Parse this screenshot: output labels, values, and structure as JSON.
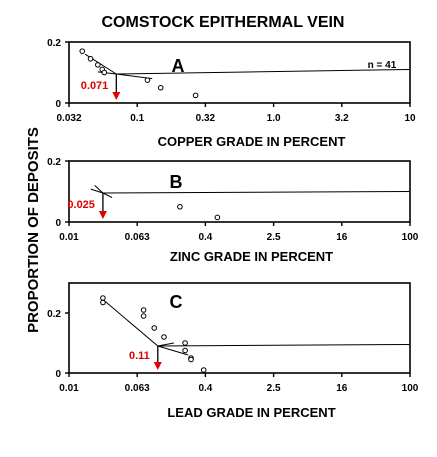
{
  "title": "COMSTOCK EPITHERMAL VEIN",
  "ylabel": "PROPORTION OF DEPOSITS",
  "colors": {
    "ink": "#000000",
    "callout": "#e00000",
    "background": "#ffffff"
  },
  "chart_data": [
    {
      "type": "scatter",
      "panel": "A",
      "xscale": "log",
      "xlim": [
        0.032,
        10
      ],
      "ylim": [
        0,
        0.2
      ],
      "xticks": [
        "0.032",
        "0.1",
        "0.32",
        "1.0",
        "3.2",
        "10"
      ],
      "yticks": [
        "0",
        "0.2"
      ],
      "xlabel": "COPPER GRADE IN PERCENT",
      "annotation": "n = 41",
      "grid": false,
      "points": [
        {
          "x": 0.04,
          "y": 0.17
        },
        {
          "x": 0.046,
          "y": 0.145
        },
        {
          "x": 0.052,
          "y": 0.125
        },
        {
          "x": 0.056,
          "y": 0.11
        },
        {
          "x": 0.058,
          "y": 0.1
        },
        {
          "x": 0.12,
          "y": 0.075
        },
        {
          "x": 0.15,
          "y": 0.05
        },
        {
          "x": 0.27,
          "y": 0.025
        }
      ],
      "curve_low": [
        {
          "x": 0.042,
          "y": 0.16
        },
        {
          "x": 0.071,
          "y": 0.095
        }
      ],
      "curve_high": [
        {
          "x": 0.052,
          "y": 0.102
        },
        {
          "x": 0.071,
          "y": 0.095
        },
        {
          "x": 0.13,
          "y": 0.08
        }
      ],
      "fit_line": [
        {
          "x": 0.071,
          "y": 0.095
        },
        {
          "x": 10,
          "y": 0.11
        }
      ],
      "callout_value": 0.071,
      "callout_label": "0.071"
    },
    {
      "type": "scatter",
      "panel": "B",
      "xscale": "log",
      "xlim": [
        0.01,
        100
      ],
      "ylim": [
        0,
        0.2
      ],
      "xticks": [
        "0.01",
        "0.063",
        "0.4",
        "2.5",
        "16",
        "100"
      ],
      "yticks": [
        "0",
        "0.2"
      ],
      "xlabel": "ZINC GRADE IN PERCENT",
      "grid": false,
      "points": [
        {
          "x": 0.2,
          "y": 0.05
        },
        {
          "x": 0.55,
          "y": 0.015
        }
      ],
      "curve_low": [
        {
          "x": 0.02,
          "y": 0.12
        },
        {
          "x": 0.025,
          "y": 0.095
        }
      ],
      "curve_high": [
        {
          "x": 0.018,
          "y": 0.108
        },
        {
          "x": 0.025,
          "y": 0.095
        },
        {
          "x": 0.032,
          "y": 0.08
        }
      ],
      "fit_line": [
        {
          "x": 0.025,
          "y": 0.095
        },
        {
          "x": 100,
          "y": 0.1
        }
      ],
      "callout_value": 0.025,
      "callout_label": "0.025"
    },
    {
      "type": "scatter",
      "panel": "C",
      "xscale": "log",
      "xlim": [
        0.01,
        100
      ],
      "ylim": [
        0,
        0.3
      ],
      "xticks": [
        "0.01",
        "0.063",
        "0.4",
        "2.5",
        "16",
        "100"
      ],
      "yticks": [
        "0",
        "0.2"
      ],
      "xlabel": "LEAD GRADE IN PERCENT",
      "grid": false,
      "points": [
        {
          "x": 0.025,
          "y": 0.25
        },
        {
          "x": 0.025,
          "y": 0.235
        },
        {
          "x": 0.075,
          "y": 0.21
        },
        {
          "x": 0.075,
          "y": 0.19
        },
        {
          "x": 0.1,
          "y": 0.15
        },
        {
          "x": 0.13,
          "y": 0.12
        },
        {
          "x": 0.23,
          "y": 0.1
        },
        {
          "x": 0.23,
          "y": 0.075
        },
        {
          "x": 0.27,
          "y": 0.05
        },
        {
          "x": 0.27,
          "y": 0.045
        },
        {
          "x": 0.38,
          "y": 0.01
        }
      ],
      "curve_low": [
        {
          "x": 0.025,
          "y": 0.245
        },
        {
          "x": 0.11,
          "y": 0.09
        }
      ],
      "curve_high": [
        {
          "x": 0.17,
          "y": 0.1
        },
        {
          "x": 0.11,
          "y": 0.09
        },
        {
          "x": 0.25,
          "y": 0.06
        }
      ],
      "fit_line": [
        {
          "x": 0.11,
          "y": 0.09
        },
        {
          "x": 100,
          "y": 0.095
        }
      ],
      "callout_value": 0.11,
      "callout_label": "0.11"
    }
  ]
}
